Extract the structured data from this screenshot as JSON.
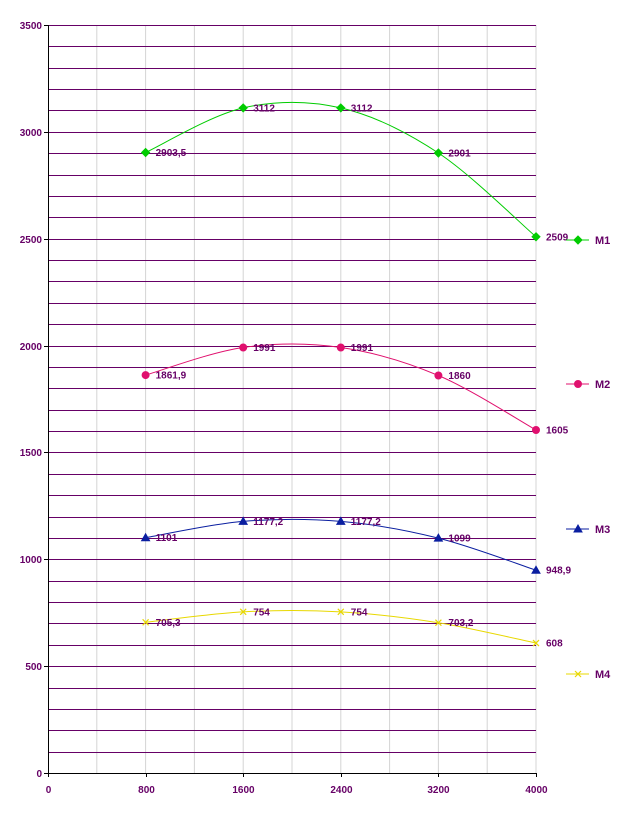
{
  "chart_data": {
    "type": "line",
    "x": [
      800,
      1600,
      2400,
      3200,
      4000
    ],
    "xlim": [
      0,
      4000
    ],
    "ylim": [
      0,
      3500
    ],
    "x_ticks": [
      "0",
      "800",
      "1600",
      "2400",
      "3200",
      "4000"
    ],
    "y_ticks": [
      "0",
      "500",
      "1000",
      "1500",
      "2000",
      "2500",
      "3000",
      "3500"
    ],
    "x_tick_values": [
      0,
      800,
      1600,
      2400,
      3200,
      4000
    ],
    "y_tick_values": [
      0,
      500,
      1000,
      1500,
      2000,
      2500,
      3000,
      3500
    ],
    "horizontal_grid_step": 100,
    "vertical_grid_step": 400,
    "legend_position": "right",
    "smooth_lines": true,
    "series": [
      {
        "name": "M1",
        "color": "#00cc00",
        "marker": "diamond",
        "values": [
          2903.5,
          3112,
          3112,
          2901,
          2509
        ],
        "labels": [
          "2903,5",
          "3112",
          "3112",
          "2901",
          "2509"
        ]
      },
      {
        "name": "M2",
        "color": "#e0106e",
        "marker": "circle",
        "values": [
          1861.9,
          1991,
          1991,
          1860,
          1605
        ],
        "labels": [
          "1861,9",
          "1991",
          "1991",
          "1860",
          "1605"
        ]
      },
      {
        "name": "M3",
        "color": "#0a1ea0",
        "marker": "triangle",
        "values": [
          1101,
          1177.2,
          1177.2,
          1099,
          948.9
        ],
        "labels": [
          "1101",
          "1177,2",
          "1177,2",
          "1099",
          "948,9"
        ]
      },
      {
        "name": "M4",
        "color": "#e8d800",
        "marker": "x",
        "values": [
          705.3,
          754,
          754,
          703.2,
          608
        ],
        "labels": [
          "705,3",
          "754",
          "754",
          "703,2",
          "608"
        ]
      }
    ],
    "colors": {
      "grid_horizontal": "#660066",
      "grid_vertical": "#d4d4d4",
      "axis": "#000000",
      "text": "#660066"
    }
  }
}
